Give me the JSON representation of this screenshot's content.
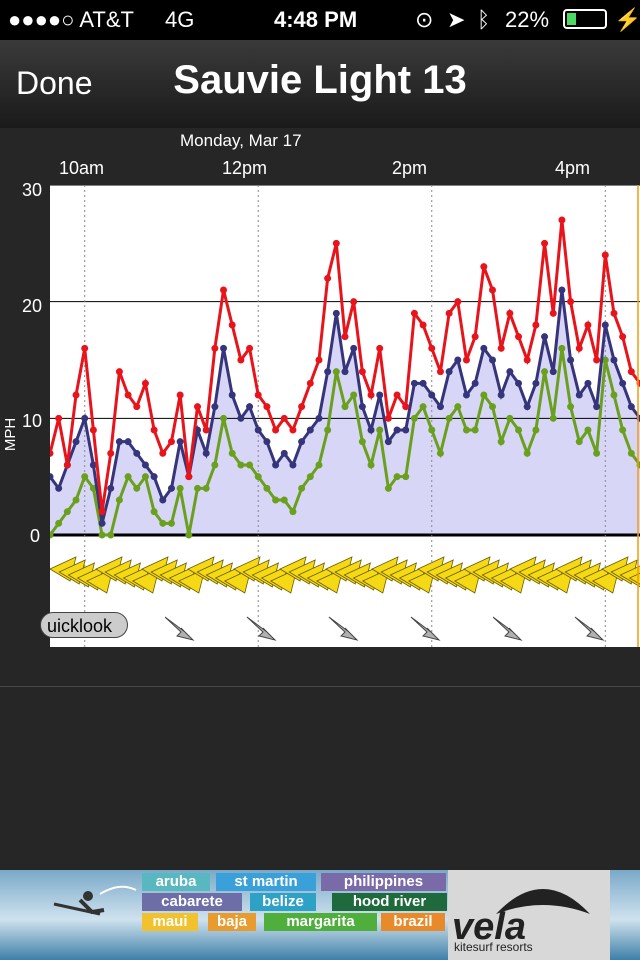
{
  "status": {
    "carrier": "●●●●○ AT&T",
    "network": "4G",
    "time": "4:48 PM",
    "battery": "22%"
  },
  "nav": {
    "done_label": "Done",
    "title": "Sauvie Light 13"
  },
  "chart_data": {
    "type": "line",
    "date": "Monday, Mar 17",
    "x_tick_labels": [
      "10am",
      "12pm",
      "2pm",
      "4pm"
    ],
    "ylabel": "MPH",
    "ylim": [
      0,
      30
    ],
    "y_ticks": [
      0,
      10,
      20,
      30
    ],
    "x_range_hours": [
      9.6,
      16.4
    ],
    "series": [
      {
        "key": "gust",
        "color": "#e8141c",
        "x": [
          9.6,
          9.7,
          9.8,
          9.9,
          10.0,
          10.1,
          10.2,
          10.3,
          10.4,
          10.5,
          10.6,
          10.7,
          10.8,
          10.9,
          11.0,
          11.1,
          11.2,
          11.3,
          11.4,
          11.5,
          11.6,
          11.7,
          11.8,
          11.9,
          12.0,
          12.1,
          12.2,
          12.3,
          12.4,
          12.5,
          12.6,
          12.7,
          12.8,
          12.9,
          13.0,
          13.1,
          13.2,
          13.3,
          13.4,
          13.5,
          13.6,
          13.7,
          13.8,
          13.9,
          14.0,
          14.1,
          14.2,
          14.3,
          14.4,
          14.5,
          14.6,
          14.7,
          14.8,
          14.9,
          15.0,
          15.1,
          15.2,
          15.3,
          15.4,
          15.5,
          15.6,
          15.7,
          15.8,
          15.9,
          16.0,
          16.1,
          16.2,
          16.3,
          16.4
        ],
        "values": [
          7,
          10,
          6,
          12,
          16,
          9,
          2,
          7,
          14,
          12,
          11,
          13,
          9,
          7,
          8,
          12,
          5,
          11,
          9,
          16,
          21,
          18,
          15,
          16,
          12,
          11,
          9,
          10,
          9,
          11,
          13,
          15,
          22,
          25,
          17,
          20,
          14,
          12,
          16,
          10,
          12,
          11,
          19,
          18,
          16,
          14,
          19,
          20,
          15,
          17,
          23,
          21,
          16,
          19,
          17,
          15,
          18,
          25,
          19,
          27,
          20,
          16,
          18,
          15,
          24,
          19,
          17,
          14,
          13
        ],
        "mark_font": "dots"
      },
      {
        "key": "average",
        "color": "#36347a",
        "x": [
          9.6,
          9.7,
          9.8,
          9.9,
          10.0,
          10.1,
          10.2,
          10.3,
          10.4,
          10.5,
          10.6,
          10.7,
          10.8,
          10.9,
          11.0,
          11.1,
          11.2,
          11.3,
          11.4,
          11.5,
          11.6,
          11.7,
          11.8,
          11.9,
          12.0,
          12.1,
          12.2,
          12.3,
          12.4,
          12.5,
          12.6,
          12.7,
          12.8,
          12.9,
          13.0,
          13.1,
          13.2,
          13.3,
          13.4,
          13.5,
          13.6,
          13.7,
          13.8,
          13.9,
          14.0,
          14.1,
          14.2,
          14.3,
          14.4,
          14.5,
          14.6,
          14.7,
          14.8,
          14.9,
          15.0,
          15.1,
          15.2,
          15.3,
          15.4,
          15.5,
          15.6,
          15.7,
          15.8,
          15.9,
          16.0,
          16.1,
          16.2,
          16.3,
          16.4
        ],
        "values": [
          5,
          4,
          6,
          8,
          10,
          6,
          1,
          4,
          8,
          8,
          7,
          6,
          5,
          3,
          4,
          8,
          5,
          9,
          7,
          11,
          16,
          12,
          10,
          11,
          9,
          8,
          6,
          7,
          6,
          8,
          9,
          10,
          14,
          19,
          14,
          16,
          11,
          9,
          12,
          8,
          9,
          9,
          13,
          13,
          12,
          11,
          14,
          15,
          12,
          13,
          16,
          15,
          12,
          14,
          13,
          11,
          13,
          17,
          14,
          21,
          15,
          12,
          13,
          11,
          18,
          15,
          13,
          11,
          10
        ]
      },
      {
        "key": "lull",
        "color": "#6aa01e",
        "x": [
          9.6,
          9.7,
          9.8,
          9.9,
          10.0,
          10.1,
          10.2,
          10.3,
          10.4,
          10.5,
          10.6,
          10.7,
          10.8,
          10.9,
          11.0,
          11.1,
          11.2,
          11.3,
          11.4,
          11.5,
          11.6,
          11.7,
          11.8,
          11.9,
          12.0,
          12.1,
          12.2,
          12.3,
          12.4,
          12.5,
          12.6,
          12.7,
          12.8,
          12.9,
          13.0,
          13.1,
          13.2,
          13.3,
          13.4,
          13.5,
          13.6,
          13.7,
          13.8,
          13.9,
          14.0,
          14.1,
          14.2,
          14.3,
          14.4,
          14.5,
          14.6,
          14.7,
          14.8,
          14.9,
          15.0,
          15.1,
          15.2,
          15.3,
          15.4,
          15.5,
          15.6,
          15.7,
          15.8,
          15.9,
          16.0,
          16.1,
          16.2,
          16.3,
          16.4
        ],
        "values": [
          0,
          1,
          2,
          3,
          5,
          4,
          0,
          0,
          3,
          5,
          4,
          5,
          2,
          1,
          1,
          4,
          0,
          4,
          4,
          6,
          10,
          7,
          6,
          6,
          5,
          4,
          3,
          3,
          2,
          4,
          5,
          6,
          9,
          14,
          11,
          12,
          8,
          6,
          9,
          4,
          5,
          5,
          10,
          11,
          9,
          7,
          10,
          11,
          9,
          9,
          12,
          11,
          8,
          10,
          9,
          7,
          9,
          14,
          10,
          16,
          11,
          8,
          9,
          7,
          15,
          12,
          9,
          7,
          6
        ]
      }
    ],
    "forecast_band_color": "#d7d6f7",
    "wind_direction": "NW"
  },
  "quicklook_label": "uicklook",
  "ad": {
    "tags": [
      {
        "text": "aruba",
        "color": "#59b8bf"
      },
      {
        "text": "st martin",
        "color": "#39a0d9"
      },
      {
        "text": "philippines",
        "color": "#7b6aa8"
      },
      {
        "text": "cabarete",
        "color": "#6d6da8"
      },
      {
        "text": "belize",
        "color": "#2ea1c6"
      },
      {
        "text": "hood river",
        "color": "#1f6a3d"
      },
      {
        "text": "maui",
        "color": "#f2c12e"
      },
      {
        "text": "baja",
        "color": "#e89b2e"
      },
      {
        "text": "margarita",
        "color": "#4fae3c"
      },
      {
        "text": "brazil",
        "color": "#e98a2a"
      }
    ],
    "brand": "vela",
    "tagline": "kitesurf resorts"
  }
}
